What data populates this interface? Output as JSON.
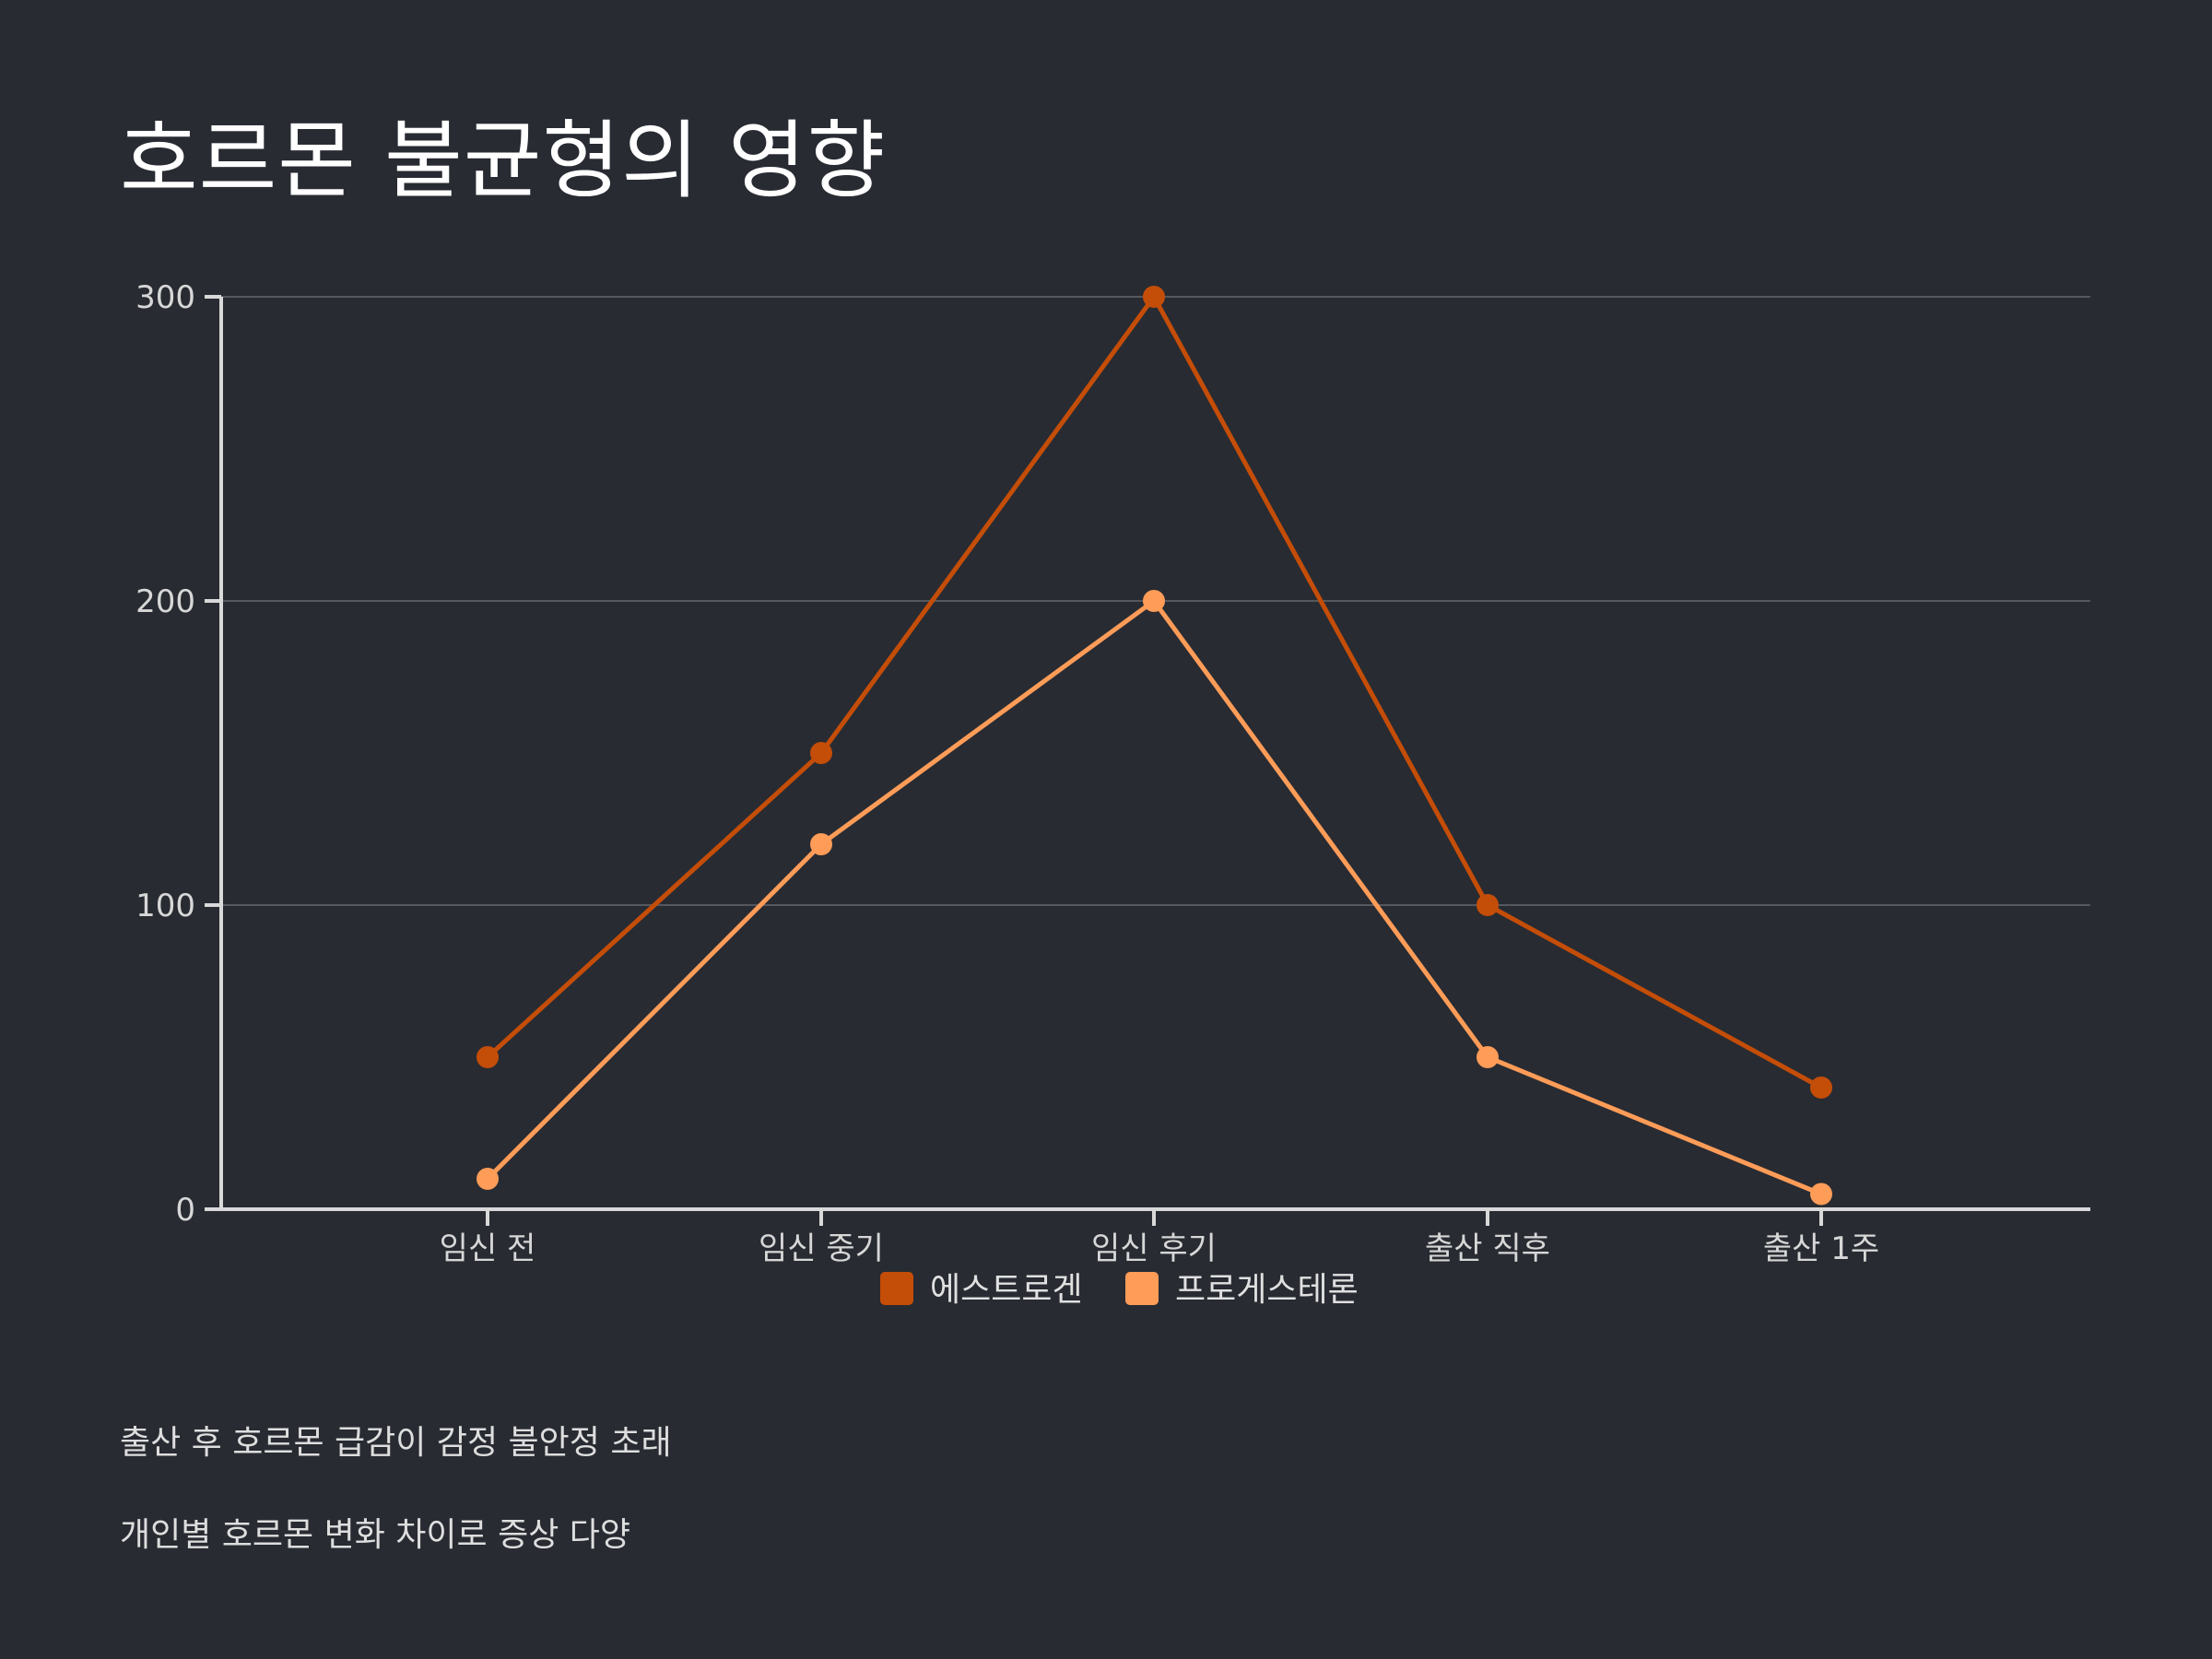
{
  "slide": {
    "title": "호르몬 불균형의 영향",
    "notes": [
      "출산 후 호르몬 급감이 감정 불안정 초래",
      "개인별 호르몬 변화 차이로 증상 다양"
    ]
  },
  "chart_data": {
    "type": "line",
    "title": "",
    "xlabel": "",
    "ylabel": "",
    "categories": [
      "임신 전",
      "임신 중기",
      "임신 후기",
      "출산 직후",
      "출산 1주"
    ],
    "series": [
      {
        "name": "에스트로겐",
        "values": [
          50,
          150,
          300,
          100,
          40
        ],
        "color": "#c44d08"
      },
      {
        "name": "프로게스테론",
        "values": [
          10,
          120,
          200,
          50,
          5
        ],
        "color": "#fe9c58"
      }
    ],
    "yticks": [
      0,
      100,
      200,
      300
    ],
    "ylim": [
      0,
      300
    ],
    "grid": true,
    "legend": "bottom-center"
  }
}
